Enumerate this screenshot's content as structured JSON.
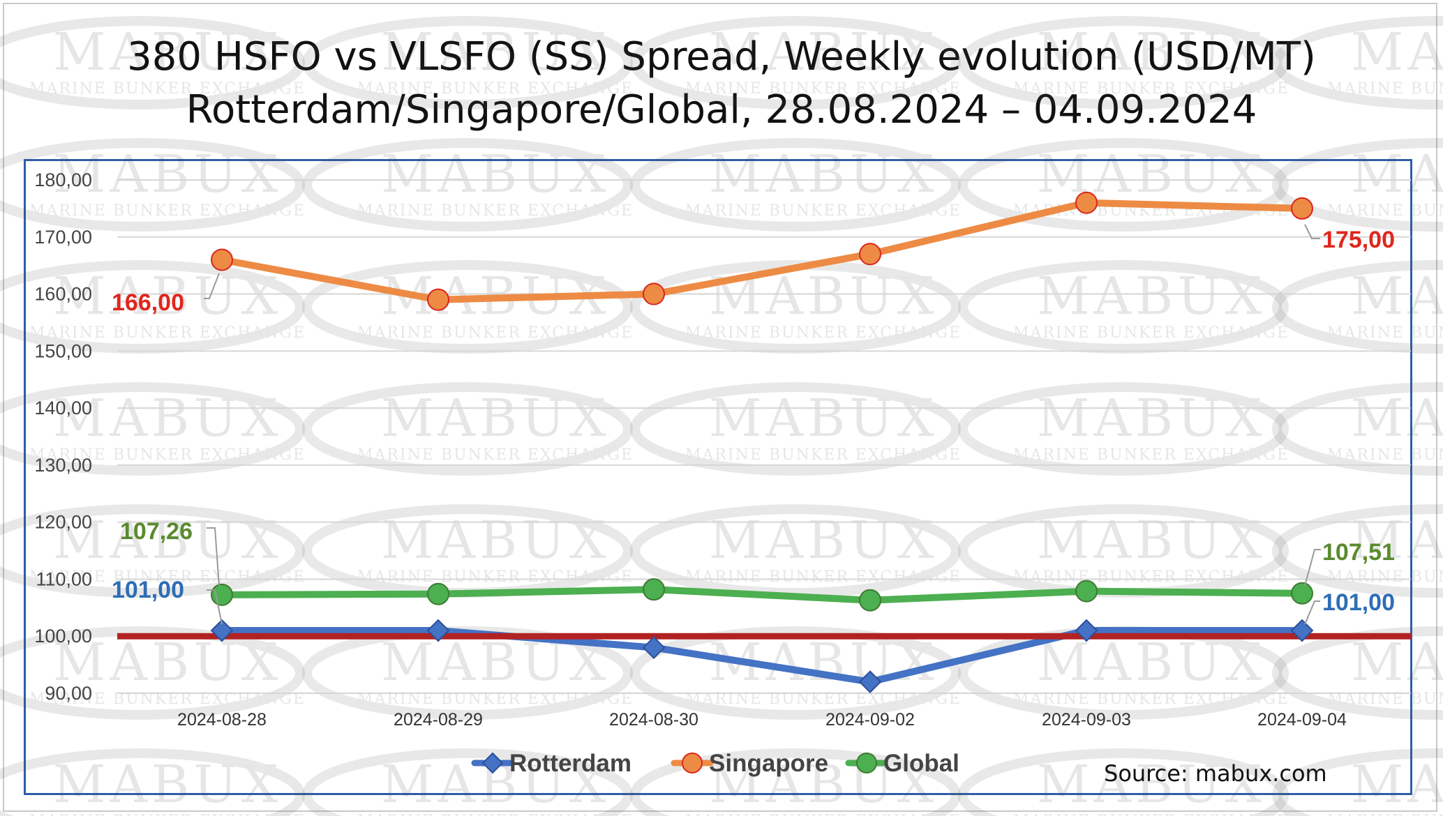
{
  "title_line1": "380 HSFO vs VLSFO (SS) Spread, Weekly evolution (USD/MT)",
  "title_line2": "Rotterdam/Singapore/Global, 28.08.2024 – 04.09.2024",
  "watermark": {
    "line1": "MABUX",
    "line2": "MARINE BUNKER EXCHANGE"
  },
  "source": "Source: mabux.com",
  "chart_data": {
    "type": "line",
    "categories": [
      "2024-08-28",
      "2024-08-29",
      "2024-08-30",
      "2024-09-02",
      "2024-09-03",
      "2024-09-04"
    ],
    "ylim": [
      90,
      180
    ],
    "yticks": [
      "90,00",
      "100,00",
      "110,00",
      "120,00",
      "130,00",
      "140,00",
      "150,00",
      "160,00",
      "170,00",
      "180,00"
    ],
    "grid": true,
    "legend": "bottom",
    "reference_line": {
      "value": 100,
      "color": "#b22222"
    },
    "series": [
      {
        "name": "Rotterdam",
        "color": "#4472c4",
        "marker": "diamond",
        "values": [
          101,
          101,
          98,
          92,
          101,
          101
        ],
        "first_label": "101,00",
        "last_label": "101,00",
        "label_color": "#2e6db4"
      },
      {
        "name": "Singapore",
        "color": "#ed8b45",
        "marker": "circle",
        "values": [
          166,
          159,
          160,
          167,
          176,
          175
        ],
        "first_label": "166,00",
        "last_label": "175,00",
        "label_color": "#e0261c"
      },
      {
        "name": "Global",
        "color": "#4caf50",
        "marker": "circle",
        "values": [
          107.26,
          107.4,
          108.2,
          106.3,
          107.9,
          107.51
        ],
        "first_label": "107,26",
        "last_label": "107,51",
        "label_color": "#5a8a2e"
      }
    ]
  }
}
